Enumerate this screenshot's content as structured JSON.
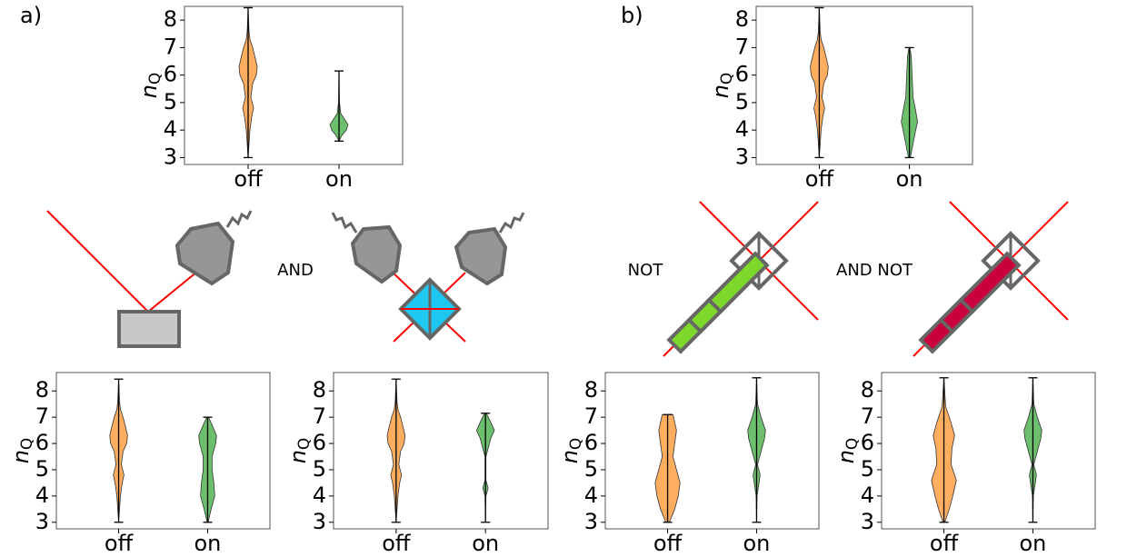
{
  "panel_labels": [
    "a)",
    "b)"
  ],
  "diagram_labels": [
    "AND",
    "NOT",
    "AND NOT"
  ],
  "chart_data": [
    {
      "type": "violin",
      "categories": [
        "off",
        "on"
      ],
      "ylabel": {
        "main": "n",
        "sub": "Q"
      },
      "ylim": [
        2.75,
        8.5
      ],
      "yticks": [
        3,
        4,
        5,
        6,
        7,
        8
      ],
      "colors": [
        "#ffa54f",
        "#5cb85c"
      ],
      "violins": [
        {
          "min": 3,
          "max": 8.45,
          "y": [
            3,
            3.5,
            4,
            4.5,
            4.8,
            5.2,
            5.7,
            6,
            6.3,
            6.6,
            7,
            7.3,
            7.6,
            8.45
          ],
          "width": [
            0,
            0.01,
            0.02,
            0.04,
            0.06,
            0.03,
            0.05,
            0.09,
            0.1,
            0.08,
            0.05,
            0.02,
            0.01,
            0
          ]
        },
        {
          "min": 3.6,
          "max": 6.15,
          "y": [
            3.6,
            3.8,
            4,
            4.2,
            4.4,
            4.6,
            5,
            6.15
          ],
          "width": [
            0,
            0.03,
            0.08,
            0.1,
            0.06,
            0.02,
            0.005,
            0
          ]
        }
      ]
    },
    {
      "type": "violin",
      "categories": [
        "off",
        "on"
      ],
      "ylabel": {
        "main": "n",
        "sub": "Q"
      },
      "ylim": [
        2.75,
        8.7
      ],
      "yticks": [
        3,
        4,
        5,
        6,
        7,
        8
      ],
      "colors": [
        "#ffa54f",
        "#5cb85c"
      ],
      "violins": [
        {
          "min": 3,
          "max": 8.45,
          "y": [
            3,
            3.5,
            4,
            4.5,
            4.8,
            5.2,
            5.7,
            6,
            6.3,
            6.6,
            7,
            7.3,
            7.6,
            8.45
          ],
          "width": [
            0,
            0.01,
            0.02,
            0.04,
            0.06,
            0.03,
            0.05,
            0.09,
            0.1,
            0.08,
            0.05,
            0.02,
            0.01,
            0
          ]
        },
        {
          "min": 3,
          "max": 7,
          "y": [
            3,
            3.5,
            4,
            4.5,
            5,
            5.5,
            6,
            6.3,
            6.7,
            7
          ],
          "width": [
            0.005,
            0.04,
            0.08,
            0.07,
            0.05,
            0.05,
            0.09,
            0.1,
            0.05,
            0.01
          ]
        }
      ]
    },
    {
      "type": "violin",
      "categories": [
        "off",
        "on"
      ],
      "ylabel": {
        "main": "n",
        "sub": "Q"
      },
      "ylim": [
        2.75,
        8.7
      ],
      "yticks": [
        3,
        4,
        5,
        6,
        7,
        8
      ],
      "colors": [
        "#ffa54f",
        "#5cb85c"
      ],
      "violins": [
        {
          "min": 3,
          "max": 8.45,
          "y": [
            3,
            3.5,
            4,
            4.5,
            4.8,
            5.2,
            5.7,
            6,
            6.3,
            6.6,
            7,
            7.3,
            7.6,
            8.45
          ],
          "width": [
            0,
            0.01,
            0.02,
            0.04,
            0.06,
            0.03,
            0.05,
            0.09,
            0.1,
            0.08,
            0.05,
            0.02,
            0.01,
            0
          ]
        },
        {
          "min": 3,
          "max": 7.15,
          "y": [
            3,
            4,
            4.3,
            4.6,
            5.5,
            6.2,
            6.5,
            6.8,
            7.15
          ],
          "width": [
            0,
            0.005,
            0.03,
            0.005,
            0.005,
            0.06,
            0.1,
            0.06,
            0.01
          ]
        }
      ]
    },
    {
      "type": "violin",
      "categories": [
        "off",
        "on"
      ],
      "ylabel": {
        "main": "n",
        "sub": "Q"
      },
      "ylim": [
        2.75,
        8.5
      ],
      "yticks": [
        3,
        4,
        5,
        6,
        7,
        8
      ],
      "colors": [
        "#ffa54f",
        "#5cb85c"
      ],
      "violins": [
        {
          "min": 3,
          "max": 8.45,
          "y": [
            3,
            3.5,
            4,
            4.5,
            4.8,
            5.2,
            5.7,
            6,
            6.3,
            6.6,
            7,
            7.3,
            7.6,
            8.45
          ],
          "width": [
            0,
            0.01,
            0.02,
            0.04,
            0.06,
            0.03,
            0.05,
            0.09,
            0.1,
            0.08,
            0.05,
            0.02,
            0.01,
            0
          ]
        },
        {
          "min": 3,
          "max": 7,
          "y": [
            3,
            3.5,
            4,
            4.3,
            4.7,
            5.2,
            6,
            6.7,
            7
          ],
          "width": [
            0.01,
            0.04,
            0.07,
            0.09,
            0.07,
            0.04,
            0.03,
            0.02,
            0.005
          ]
        }
      ]
    },
    {
      "type": "violin",
      "categories": [
        "off",
        "on"
      ],
      "ylabel": {
        "main": "n",
        "sub": "Q"
      },
      "ylim": [
        2.75,
        8.7
      ],
      "yticks": [
        3,
        4,
        5,
        6,
        7,
        8
      ],
      "colors": [
        "#ffa54f",
        "#5cb85c"
      ],
      "violins": [
        {
          "min": 3,
          "max": 7.1,
          "y": [
            3,
            3.5,
            4,
            4.5,
            5,
            5.5,
            6,
            6.5,
            7.1
          ],
          "width": [
            0.02,
            0.08,
            0.12,
            0.14,
            0.1,
            0.06,
            0.08,
            0.1,
            0.06
          ]
        },
        {
          "min": 3,
          "max": 8.5,
          "y": [
            3,
            4,
            4.8,
            5.2,
            5.7,
            6.2,
            6.5,
            7,
            7.5,
            8.5
          ],
          "width": [
            0,
            0.005,
            0.04,
            0.01,
            0.05,
            0.09,
            0.1,
            0.05,
            0.01,
            0
          ]
        }
      ]
    },
    {
      "type": "violin",
      "categories": [
        "off",
        "on"
      ],
      "ylabel": {
        "main": "n",
        "sub": "Q"
      },
      "ylim": [
        2.75,
        8.7
      ],
      "yticks": [
        3,
        4,
        5,
        6,
        7,
        8
      ],
      "colors": [
        "#ffa54f",
        "#5cb85c"
      ],
      "violins": [
        {
          "min": 3,
          "max": 8.5,
          "y": [
            3,
            3.5,
            4,
            4.6,
            5.2,
            5.8,
            6.3,
            6.8,
            7.4,
            8.5
          ],
          "width": [
            0.01,
            0.06,
            0.1,
            0.14,
            0.08,
            0.09,
            0.12,
            0.08,
            0.02,
            0
          ]
        },
        {
          "min": 3,
          "max": 8.5,
          "y": [
            3,
            4,
            4.8,
            5.2,
            5.7,
            6.2,
            6.5,
            7,
            7.5,
            8.5
          ],
          "width": [
            0,
            0.005,
            0.04,
            0.01,
            0.05,
            0.09,
            0.1,
            0.05,
            0.01,
            0
          ]
        }
      ]
    }
  ]
}
